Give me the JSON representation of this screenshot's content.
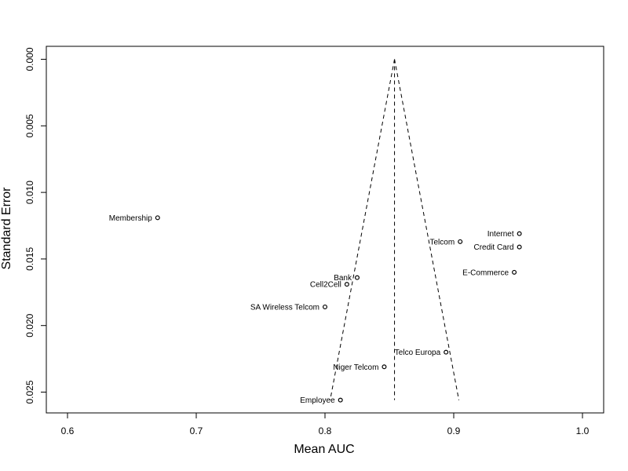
{
  "chart_data": {
    "type": "scatter",
    "xlabel": "Mean AUC",
    "ylabel": "Standard Error",
    "xlim": [
      0.6,
      1.0
    ],
    "ylim": [
      0.0,
      0.025
    ],
    "y_reversed": true,
    "x_ticks": [
      "0.6",
      "0.7",
      "0.8",
      "0.9",
      "1.0"
    ],
    "y_ticks": [
      "0.000",
      "0.005",
      "0.010",
      "0.015",
      "0.020",
      "0.025"
    ],
    "grid": false,
    "points": [
      {
        "label": "Membership",
        "x": 0.67,
        "y": 0.0119
      },
      {
        "label": "Internet",
        "x": 0.951,
        "y": 0.0131
      },
      {
        "label": "Telcom",
        "x": 0.905,
        "y": 0.0137
      },
      {
        "label": "Credit Card",
        "x": 0.951,
        "y": 0.0141
      },
      {
        "label": "E-Commerce",
        "x": 0.947,
        "y": 0.016
      },
      {
        "label": "Bank",
        "x": 0.825,
        "y": 0.0164
      },
      {
        "label": "Cell2Cell",
        "x": 0.817,
        "y": 0.0169
      },
      {
        "label": "SA Wireless Telcom",
        "x": 0.8,
        "y": 0.0186
      },
      {
        "label": "Telco Europa",
        "x": 0.894,
        "y": 0.022
      },
      {
        "label": "Niger Telcom",
        "x": 0.846,
        "y": 0.0231
      },
      {
        "label": "Employee",
        "x": 0.812,
        "y": 0.0256
      }
    ],
    "funnel": {
      "center_x": 0.854,
      "apex_y": 0.0,
      "bottom_y": 0.0256,
      "left_bottom_x": 0.804,
      "right_bottom_x": 0.904
    }
  }
}
